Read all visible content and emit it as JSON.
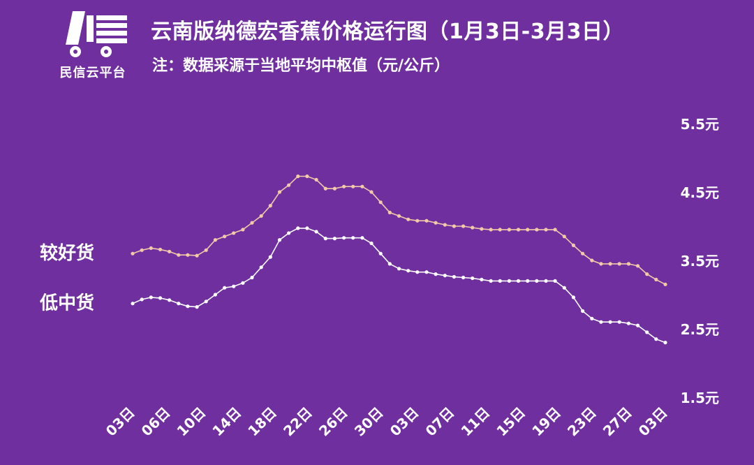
{
  "brand": {
    "logo_text": "民信云平台"
  },
  "title": "云南版纳德宏香蕉价格运行图（1月3日-3月3日）",
  "subtitle": "注：数据采源于当地平均中枢值（元/公斤）",
  "colors": {
    "background": "#6f2f9f",
    "good": "#f3c9a8",
    "low": "#ffffff"
  },
  "chart_data": {
    "type": "line",
    "title": "云南版纳德宏香蕉价格运行图（1月3日-3月3日）",
    "ylim": [
      1.5,
      5.5
    ],
    "y_ticks": [
      1.5,
      2.5,
      3.5,
      4.5,
      5.5
    ],
    "y_tick_labels": [
      "1.5元",
      "2.5元",
      "3.5元",
      "4.5元",
      "5.5元"
    ],
    "y_axis_position": "right",
    "grid": false,
    "tick_labels": [
      "03日",
      "06日",
      "10日",
      "14日",
      "18日",
      "22日",
      "26日",
      "30日",
      "03日",
      "07日",
      "11日",
      "15日",
      "19日",
      "23日",
      "27日",
      "03日"
    ],
    "series": [
      {
        "name": "较好货",
        "values": [
          3.6,
          3.65,
          3.68,
          3.66,
          3.63,
          3.58,
          3.58,
          3.57,
          3.65,
          3.8,
          3.85,
          3.9,
          3.95,
          4.05,
          4.15,
          4.3,
          4.5,
          4.6,
          4.73,
          4.73,
          4.68,
          4.55,
          4.55,
          4.58,
          4.58,
          4.58,
          4.5,
          4.35,
          4.2,
          4.15,
          4.1,
          4.08,
          4.08,
          4.05,
          4.02,
          4.0,
          4.0,
          3.98,
          3.96,
          3.95,
          3.95,
          3.95,
          3.95,
          3.95,
          3.95,
          3.95,
          3.95,
          3.85,
          3.72,
          3.6,
          3.5,
          3.45,
          3.45,
          3.45,
          3.45,
          3.42,
          3.3,
          3.22,
          3.15
        ]
      },
      {
        "name": "低中货",
        "values": [
          2.87,
          2.93,
          2.96,
          2.95,
          2.92,
          2.87,
          2.83,
          2.82,
          2.9,
          3.0,
          3.1,
          3.12,
          3.17,
          3.25,
          3.4,
          3.55,
          3.8,
          3.9,
          3.97,
          3.97,
          3.92,
          3.82,
          3.82,
          3.83,
          3.83,
          3.83,
          3.75,
          3.6,
          3.45,
          3.38,
          3.35,
          3.33,
          3.33,
          3.3,
          3.28,
          3.26,
          3.25,
          3.24,
          3.22,
          3.2,
          3.2,
          3.2,
          3.2,
          3.2,
          3.2,
          3.2,
          3.2,
          3.1,
          2.96,
          2.76,
          2.65,
          2.6,
          2.6,
          2.6,
          2.58,
          2.55,
          2.45,
          2.35,
          2.3
        ]
      }
    ]
  }
}
